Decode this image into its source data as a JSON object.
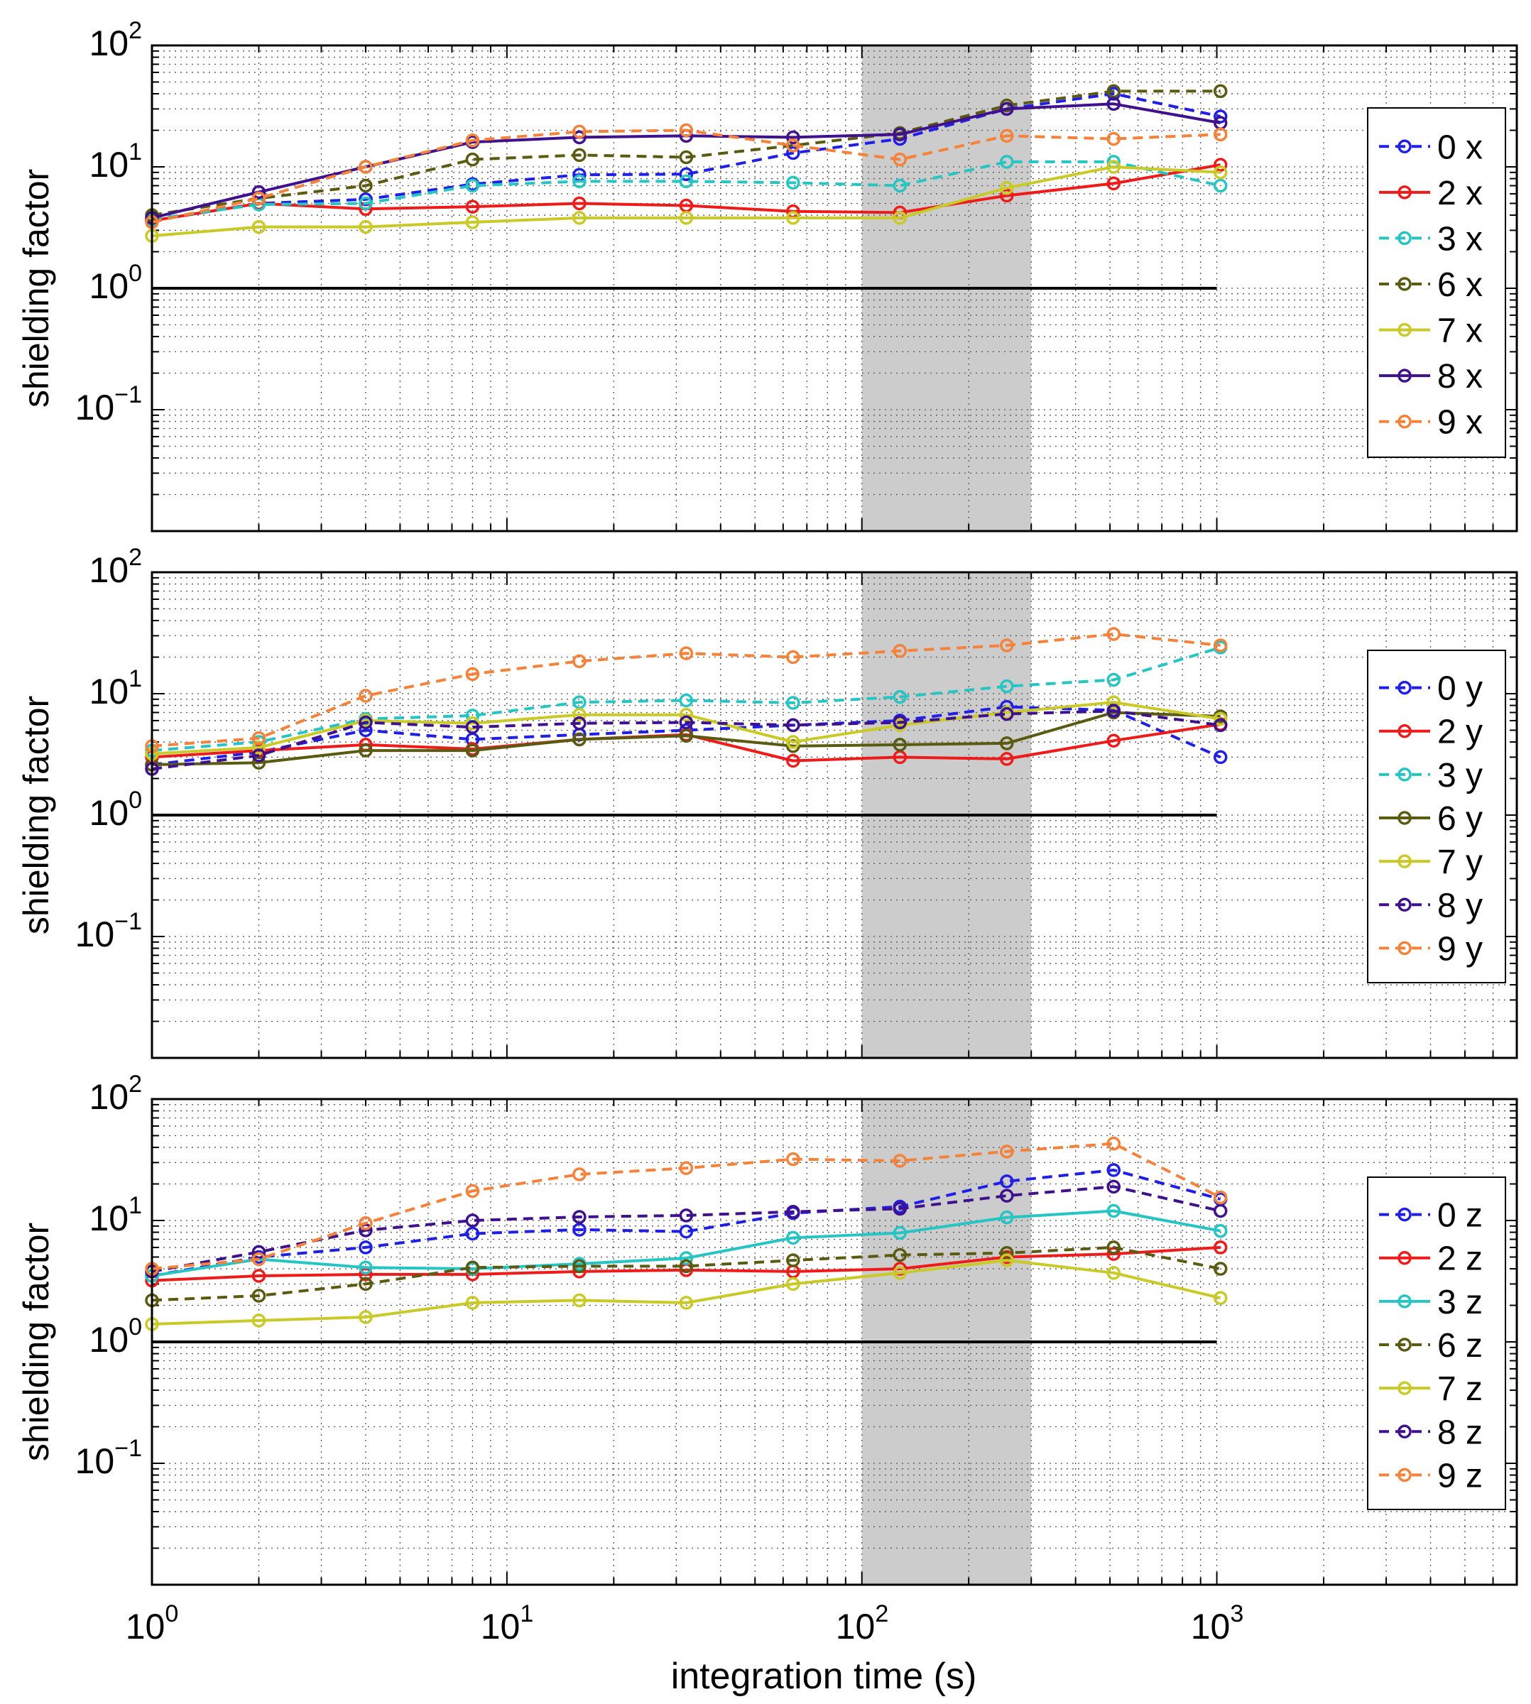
{
  "figure": {
    "xlabel": "integration time (s)",
    "x_tick_labels": [
      {
        "base": "10",
        "exp": "0"
      },
      {
        "base": "10",
        "exp": "1"
      },
      {
        "base": "10",
        "exp": "2"
      },
      {
        "base": "10",
        "exp": "3"
      }
    ]
  },
  "chart_data": [
    {
      "type": "line",
      "axis": "x",
      "title": "",
      "xlabel": "",
      "ylabel": "shielding factor",
      "xscale": "log",
      "yscale": "log",
      "xlim": [
        1,
        7000
      ],
      "ylim": [
        0.01,
        100
      ],
      "grid": true,
      "legend": "right",
      "shaded_region": [
        100,
        300
      ],
      "reference_line": {
        "y": 1,
        "x": [
          1,
          1000
        ],
        "color": "#000000"
      },
      "y_tick_labels": [
        {
          "base": "10",
          "exp": "2",
          "value": 100
        },
        {
          "base": "10",
          "exp": "1",
          "value": 10
        },
        {
          "base": "10",
          "exp": "0",
          "value": 1
        },
        {
          "base": "10",
          "exp": "−1",
          "value": 0.1
        }
      ],
      "x": [
        1,
        2,
        4,
        8,
        16,
        32,
        64,
        128,
        256,
        512,
        1024
      ],
      "series": [
        {
          "name": "0 x",
          "color": "#1f1fe6",
          "dash": true,
          "values": [
            3.6,
            5.0,
            5.4,
            7.2,
            8.6,
            8.7,
            13.0,
            17.0,
            30.0,
            40.0,
            26.0
          ]
        },
        {
          "name": "2 x",
          "color": "#ee1b1b",
          "dash": false,
          "values": [
            3.6,
            5.0,
            4.5,
            4.7,
            5.0,
            4.8,
            4.3,
            4.2,
            5.8,
            7.3,
            10.4
          ]
        },
        {
          "name": "3 x",
          "color": "#27c4c4",
          "dash": true,
          "values": [
            3.7,
            4.9,
            5.0,
            7.0,
            7.6,
            7.6,
            7.4,
            7.0,
            11.0,
            11.0,
            7.0
          ]
        },
        {
          "name": "6 x",
          "color": "#5a5a10",
          "dash": true,
          "values": [
            4.0,
            5.5,
            7.0,
            11.5,
            12.5,
            12.0,
            15.0,
            19.0,
            32.0,
            42.0,
            42.0
          ]
        },
        {
          "name": "7 x",
          "color": "#c9c928",
          "dash": false,
          "values": [
            2.7,
            3.2,
            3.2,
            3.5,
            3.8,
            3.8,
            3.8,
            3.8,
            6.7,
            10.0,
            9.0
          ]
        },
        {
          "name": "8 x",
          "color": "#3f118d",
          "dash": false,
          "values": [
            3.8,
            6.2,
            10.0,
            16.0,
            17.5,
            18.0,
            17.5,
            18.5,
            30.0,
            33.0,
            23.0
          ]
        },
        {
          "name": "9 x",
          "color": "#f5823a",
          "dash": true,
          "values": [
            3.5,
            5.5,
            10.0,
            16.5,
            19.5,
            20.0,
            15.0,
            11.5,
            18.0,
            17.0,
            18.5
          ]
        }
      ]
    },
    {
      "type": "line",
      "axis": "y",
      "title": "",
      "xlabel": "",
      "ylabel": "shielding factor",
      "xscale": "log",
      "yscale": "log",
      "xlim": [
        1,
        7000
      ],
      "ylim": [
        0.01,
        100
      ],
      "grid": true,
      "legend": "right",
      "shaded_region": [
        100,
        300
      ],
      "reference_line": {
        "y": 1,
        "x": [
          1,
          1000
        ],
        "color": "#000000"
      },
      "y_tick_labels": [
        {
          "base": "10",
          "exp": "2",
          "value": 100
        },
        {
          "base": "10",
          "exp": "1",
          "value": 10
        },
        {
          "base": "10",
          "exp": "0",
          "value": 1
        },
        {
          "base": "10",
          "exp": "−1",
          "value": 0.1
        }
      ],
      "x": [
        1,
        2,
        4,
        8,
        16,
        32,
        64,
        128,
        256,
        512,
        1024
      ],
      "series": [
        {
          "name": "0 y",
          "color": "#1f1fe6",
          "dash": true,
          "values": [
            2.6,
            3.3,
            5.0,
            4.2,
            4.6,
            5.0,
            5.5,
            6.0,
            7.8,
            7.3,
            3.0
          ]
        },
        {
          "name": "2 y",
          "color": "#ee1b1b",
          "dash": false,
          "values": [
            3.0,
            3.4,
            3.8,
            3.5,
            4.2,
            4.6,
            2.8,
            3.0,
            2.9,
            4.1,
            5.6
          ]
        },
        {
          "name": "3 y",
          "color": "#27c4c4",
          "dash": true,
          "values": [
            3.4,
            4.0,
            6.2,
            6.6,
            8.5,
            8.8,
            8.4,
            9.4,
            11.5,
            13.0,
            24.0
          ]
        },
        {
          "name": "6 y",
          "color": "#5a5a10",
          "dash": false,
          "values": [
            2.6,
            2.7,
            3.4,
            3.4,
            4.2,
            4.5,
            3.7,
            3.8,
            3.9,
            7.0,
            6.5
          ]
        },
        {
          "name": "7 y",
          "color": "#c9c928",
          "dash": false,
          "values": [
            3.2,
            3.6,
            6.0,
            5.7,
            6.7,
            6.7,
            4.0,
            5.5,
            7.0,
            8.5,
            6.2
          ]
        },
        {
          "name": "8 y",
          "color": "#3f118d",
          "dash": true,
          "values": [
            2.4,
            3.1,
            5.8,
            5.3,
            5.7,
            5.8,
            5.5,
            5.8,
            6.8,
            7.2,
            5.5
          ]
        },
        {
          "name": "9 y",
          "color": "#f5823a",
          "dash": true,
          "values": [
            3.7,
            4.3,
            9.6,
            14.5,
            18.5,
            21.5,
            20.0,
            22.5,
            25.0,
            31.0,
            25.0
          ]
        }
      ]
    },
    {
      "type": "line",
      "axis": "z",
      "title": "",
      "xlabel": "integration time (s)",
      "ylabel": "shielding factor",
      "xscale": "log",
      "yscale": "log",
      "xlim": [
        1,
        7000
      ],
      "ylim": [
        0.01,
        100
      ],
      "grid": true,
      "legend": "right",
      "shaded_region": [
        100,
        300
      ],
      "reference_line": {
        "y": 1,
        "x": [
          1,
          1000
        ],
        "color": "#000000"
      },
      "y_tick_labels": [
        {
          "base": "10",
          "exp": "2",
          "value": 100
        },
        {
          "base": "10",
          "exp": "1",
          "value": 10
        },
        {
          "base": "10",
          "exp": "0",
          "value": 1
        },
        {
          "base": "10",
          "exp": "−1",
          "value": 0.1
        }
      ],
      "x": [
        1,
        2,
        4,
        8,
        16,
        32,
        64,
        128,
        256,
        512,
        1024
      ],
      "series": [
        {
          "name": "0 z",
          "color": "#1f1fe6",
          "dash": true,
          "values": [
            3.5,
            5.0,
            6.0,
            7.8,
            8.4,
            8.1,
            11.5,
            13.0,
            21.0,
            26.0,
            15.0
          ]
        },
        {
          "name": "2 z",
          "color": "#ee1b1b",
          "dash": false,
          "values": [
            3.2,
            3.5,
            3.6,
            3.6,
            3.8,
            3.9,
            3.8,
            4.0,
            5.0,
            5.3,
            6.0
          ]
        },
        {
          "name": "3 z",
          "color": "#27c4c4",
          "dash": false,
          "values": [
            3.5,
            4.8,
            4.1,
            4.0,
            4.4,
            4.9,
            7.2,
            7.9,
            10.6,
            12.0,
            8.2
          ]
        },
        {
          "name": "6 z",
          "color": "#5a5a10",
          "dash": true,
          "values": [
            2.2,
            2.4,
            3.0,
            4.1,
            4.2,
            4.2,
            4.7,
            5.2,
            5.4,
            6.0,
            4.0
          ]
        },
        {
          "name": "7 z",
          "color": "#c9c928",
          "dash": false,
          "values": [
            1.4,
            1.5,
            1.6,
            2.1,
            2.2,
            2.1,
            3.0,
            3.7,
            4.7,
            3.7,
            2.3
          ]
        },
        {
          "name": "8 z",
          "color": "#3f118d",
          "dash": true,
          "values": [
            3.8,
            5.5,
            8.3,
            10.0,
            10.7,
            11.0,
            11.8,
            12.5,
            16.0,
            19.0,
            12.0
          ]
        },
        {
          "name": "9 z",
          "color": "#f5823a",
          "dash": true,
          "values": [
            4.0,
            4.8,
            9.5,
            17.5,
            24.0,
            27.0,
            32.0,
            31.0,
            37.0,
            43.0,
            15.5
          ]
        }
      ]
    }
  ]
}
